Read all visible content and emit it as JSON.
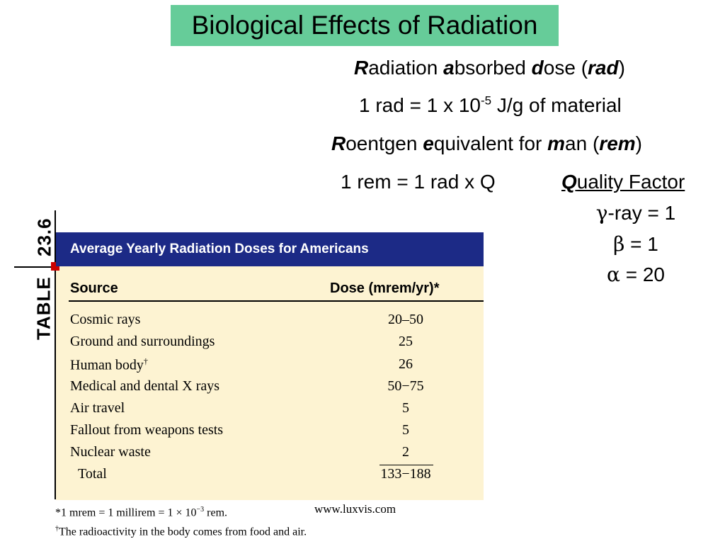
{
  "title": "Biological Effects of Radiation",
  "rad_def": {
    "r": "R",
    "r_rest": "adiation ",
    "a": "a",
    "a_rest": "bsorbed ",
    "d": "d",
    "d_rest": "ose (",
    "abbr": "rad",
    "close": ")"
  },
  "rad_eq": {
    "text": "1 rad = 1 x 10",
    "exp": "-5",
    "unit": " J/g of material"
  },
  "rem_def": {
    "r": "R",
    "r_rest": "oentgen ",
    "e": "e",
    "e_rest": "quivalent for ",
    "m": "m",
    "m_rest": "an (",
    "abbr": "rem",
    "close": ")"
  },
  "rem_eq": "1 rem = 1 rad x Q",
  "quality_factor": {
    "q": "Q",
    "rest": "uality Factor"
  },
  "factors": [
    {
      "symbol": "γ",
      "text": "-ray = 1"
    },
    {
      "symbol": "β",
      "text": " = 1"
    },
    {
      "symbol": "α",
      "text": " = 20"
    }
  ],
  "table": {
    "label_word": "TABLE",
    "label_num": "23.6",
    "heading": "Average Yearly Radiation Doses for Americans",
    "col_source": "Source",
    "col_dose": "Dose (mrem/yr)*",
    "rows": [
      {
        "source": "Cosmic rays",
        "mark": "",
        "dose": "20–50"
      },
      {
        "source": "Ground and surroundings",
        "mark": "",
        "dose": "25"
      },
      {
        "source": "Human body",
        "mark": "†",
        "dose": "26"
      },
      {
        "source": "Medical and dental X rays",
        "mark": "",
        "dose": "50−75"
      },
      {
        "source": "Air travel",
        "mark": "",
        "dose": "5"
      },
      {
        "source": "Fallout from weapons tests",
        "mark": "",
        "dose": "5"
      },
      {
        "source": "Nuclear waste",
        "mark": "",
        "dose": "2"
      }
    ],
    "total_label": "Total",
    "total_value": "133−188"
  },
  "footnotes": {
    "note1": "*1 mrem = 1 millirem = 1 × 10",
    "note1_exp": "−3",
    "note1_end": " rem.",
    "note2_mark": "†",
    "note2": "The radioactivity in the body comes from food and air."
  },
  "credit": "www.luxvis.com",
  "colors": {
    "title_bg": "#66cc99",
    "table_head_bg": "#1c2a86",
    "table_bg": "#fdf3d2",
    "accent_square": "#cc0000"
  }
}
